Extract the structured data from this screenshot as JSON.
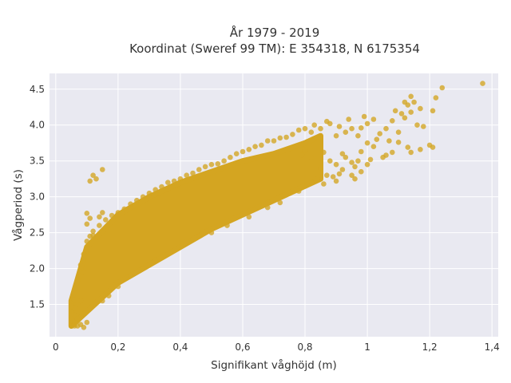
{
  "chart_data": {
    "type": "scatter",
    "title_line1": "År 1979 - 2019",
    "title_line2": "Koordinat (Sweref 99 TM): E 354318, N 6175354",
    "xlabel": "Signifikant våghöjd (m)",
    "ylabel": "Vågperiod (s)",
    "xlim": [
      -0.02,
      1.42
    ],
    "ylim": [
      1.05,
      4.72
    ],
    "x_ticks": [
      0,
      0.2,
      0.4,
      0.6,
      0.8,
      1,
      1.2,
      1.4
    ],
    "x_tick_labels": [
      "0",
      "0,2",
      "0,4",
      "0,6",
      "0,8",
      "1",
      "1,2",
      "1,4"
    ],
    "y_ticks": [
      1.5,
      2.0,
      2.5,
      3.0,
      3.5,
      4.0,
      4.5
    ],
    "y_tick_labels": [
      "1.5",
      "2.0",
      "2.5",
      "3.0",
      "3.5",
      "4.0",
      "4.5"
    ],
    "grid": true,
    "plot_background": "#e9e9f1",
    "marker_color": "#d4a521",
    "marker_opacity": 0.78,
    "dense_band": {
      "x_start": 0.05,
      "x_end": 0.85,
      "lower": [
        [
          0.05,
          1.2
        ],
        [
          0.1,
          1.4
        ],
        [
          0.2,
          1.8
        ],
        [
          0.3,
          2.05
        ],
        [
          0.4,
          2.3
        ],
        [
          0.5,
          2.55
        ],
        [
          0.6,
          2.75
        ],
        [
          0.7,
          2.95
        ],
        [
          0.8,
          3.15
        ],
        [
          0.85,
          3.25
        ]
      ],
      "upper": [
        [
          0.05,
          1.55
        ],
        [
          0.1,
          2.3
        ],
        [
          0.2,
          2.75
        ],
        [
          0.3,
          3.0
        ],
        [
          0.4,
          3.2
        ],
        [
          0.5,
          3.35
        ],
        [
          0.6,
          3.5
        ],
        [
          0.7,
          3.6
        ],
        [
          0.8,
          3.75
        ],
        [
          0.85,
          3.85
        ]
      ]
    },
    "points": [
      [
        1.37,
        4.58
      ],
      [
        1.24,
        4.52
      ],
      [
        1.21,
        4.2
      ],
      [
        1.22,
        4.38
      ],
      [
        1.14,
        4.4
      ],
      [
        1.12,
        4.32
      ],
      [
        1.09,
        4.2
      ],
      [
        1.15,
        4.32
      ],
      [
        1.13,
        4.28
      ],
      [
        1.17,
        4.23
      ],
      [
        1.11,
        4.16
      ],
      [
        1.14,
        4.18
      ],
      [
        1.2,
        3.72
      ],
      [
        1.21,
        3.69
      ],
      [
        1.17,
        3.66
      ],
      [
        1.13,
        3.69
      ],
      [
        1.14,
        3.62
      ],
      [
        1.1,
        3.76
      ],
      [
        1.08,
        3.62
      ],
      [
        1.06,
        3.58
      ],
      [
        1.0,
        3.75
      ],
      [
        0.98,
        3.63
      ],
      [
        1.02,
        3.7
      ],
      [
        1.05,
        3.55
      ],
      [
        1.0,
        3.45
      ],
      [
        0.98,
        3.35
      ],
      [
        0.96,
        3.42
      ],
      [
        0.93,
        3.55
      ],
      [
        0.95,
        3.48
      ],
      [
        0.92,
        3.6
      ],
      [
        0.9,
        3.45
      ],
      [
        0.88,
        3.5
      ],
      [
        0.95,
        3.3
      ],
      [
        0.92,
        3.38
      ],
      [
        0.9,
        3.22
      ],
      [
        0.96,
        3.25
      ],
      [
        0.87,
        3.3
      ],
      [
        0.85,
        3.4
      ],
      [
        0.84,
        3.25
      ],
      [
        1.06,
        3.95
      ],
      [
        1.04,
        3.88
      ],
      [
        1.02,
        4.08
      ],
      [
        1.0,
        4.02
      ],
      [
        0.98,
        3.96
      ],
      [
        1.08,
        4.06
      ],
      [
        1.1,
        3.9
      ],
      [
        0.97,
        3.85
      ],
      [
        0.95,
        3.95
      ],
      [
        0.93,
        3.9
      ],
      [
        0.91,
        3.98
      ],
      [
        0.9,
        3.85
      ],
      [
        0.88,
        4.02
      ],
      [
        0.87,
        4.05
      ],
      [
        0.85,
        3.95
      ],
      [
        0.83,
        4.0
      ],
      [
        0.82,
        3.9
      ],
      [
        0.8,
        3.95
      ],
      [
        0.78,
        3.93
      ],
      [
        1.03,
        3.8
      ],
      [
        1.07,
        3.78
      ],
      [
        0.99,
        4.12
      ],
      [
        0.94,
        4.08
      ],
      [
        1.01,
        3.52
      ],
      [
        1.12,
        4.1
      ],
      [
        1.16,
        4.0
      ],
      [
        1.18,
        3.98
      ],
      [
        0.86,
        3.18
      ],
      [
        0.89,
        3.28
      ],
      [
        0.91,
        3.32
      ],
      [
        0.97,
        3.5
      ],
      [
        0.86,
        3.62
      ],
      [
        0.82,
        3.55
      ],
      [
        0.8,
        3.65
      ],
      [
        0.79,
        3.58
      ],
      [
        0.76,
        3.87
      ],
      [
        0.74,
        3.83
      ],
      [
        0.72,
        3.82
      ],
      [
        0.7,
        3.78
      ],
      [
        0.68,
        3.78
      ],
      [
        0.66,
        3.72
      ],
      [
        0.64,
        3.7
      ],
      [
        0.62,
        3.66
      ],
      [
        0.6,
        3.63
      ],
      [
        0.58,
        3.6
      ],
      [
        0.56,
        3.55
      ],
      [
        0.54,
        3.5
      ],
      [
        0.52,
        3.46
      ],
      [
        0.5,
        3.45
      ],
      [
        0.48,
        3.42
      ],
      [
        0.46,
        3.38
      ],
      [
        0.44,
        3.33
      ],
      [
        0.42,
        3.3
      ],
      [
        0.4,
        3.25
      ],
      [
        0.38,
        3.22
      ],
      [
        0.36,
        3.2
      ],
      [
        0.34,
        3.14
      ],
      [
        0.32,
        3.1
      ],
      [
        0.3,
        3.05
      ],
      [
        0.28,
        3.0
      ],
      [
        0.26,
        2.95
      ],
      [
        0.24,
        2.9
      ],
      [
        0.22,
        2.83
      ],
      [
        0.2,
        2.78
      ],
      [
        0.18,
        2.74
      ],
      [
        0.16,
        2.68
      ],
      [
        0.14,
        2.6
      ],
      [
        0.12,
        2.52
      ],
      [
        0.11,
        2.45
      ],
      [
        0.1,
        2.38
      ],
      [
        0.09,
        2.2
      ],
      [
        0.08,
        2.05
      ],
      [
        0.12,
        2.46
      ],
      [
        0.1,
        2.62
      ],
      [
        0.11,
        2.7
      ],
      [
        0.14,
        2.72
      ],
      [
        0.15,
        2.78
      ],
      [
        0.1,
        2.77
      ],
      [
        0.13,
        3.25
      ],
      [
        0.12,
        3.3
      ],
      [
        0.11,
        3.22
      ],
      [
        0.15,
        3.38
      ],
      [
        0.07,
        1.2
      ],
      [
        0.08,
        1.22
      ],
      [
        0.06,
        1.2
      ],
      [
        0.09,
        1.18
      ],
      [
        0.05,
        1.2
      ],
      [
        0.06,
        1.22
      ],
      [
        0.07,
        1.5
      ],
      [
        0.06,
        1.45
      ],
      [
        0.05,
        1.48
      ],
      [
        0.06,
        1.56
      ],
      [
        0.08,
        1.55
      ],
      [
        0.05,
        1.4
      ],
      [
        0.06,
        1.35
      ],
      [
        0.07,
        1.3
      ],
      [
        0.08,
        1.9
      ],
      [
        0.09,
        1.95
      ],
      [
        0.1,
        1.25
      ],
      [
        0.46,
        2.45
      ],
      [
        0.5,
        2.5
      ],
      [
        0.55,
        2.6
      ],
      [
        0.62,
        2.72
      ],
      [
        0.68,
        2.85
      ],
      [
        0.72,
        2.92
      ],
      [
        0.78,
        3.08
      ],
      [
        0.82,
        3.2
      ],
      [
        0.42,
        2.38
      ],
      [
        0.36,
        2.2
      ],
      [
        0.32,
        2.12
      ],
      [
        0.28,
        2.0
      ],
      [
        0.24,
        1.9
      ],
      [
        0.2,
        1.75
      ],
      [
        0.17,
        1.62
      ],
      [
        0.15,
        1.55
      ]
    ]
  }
}
